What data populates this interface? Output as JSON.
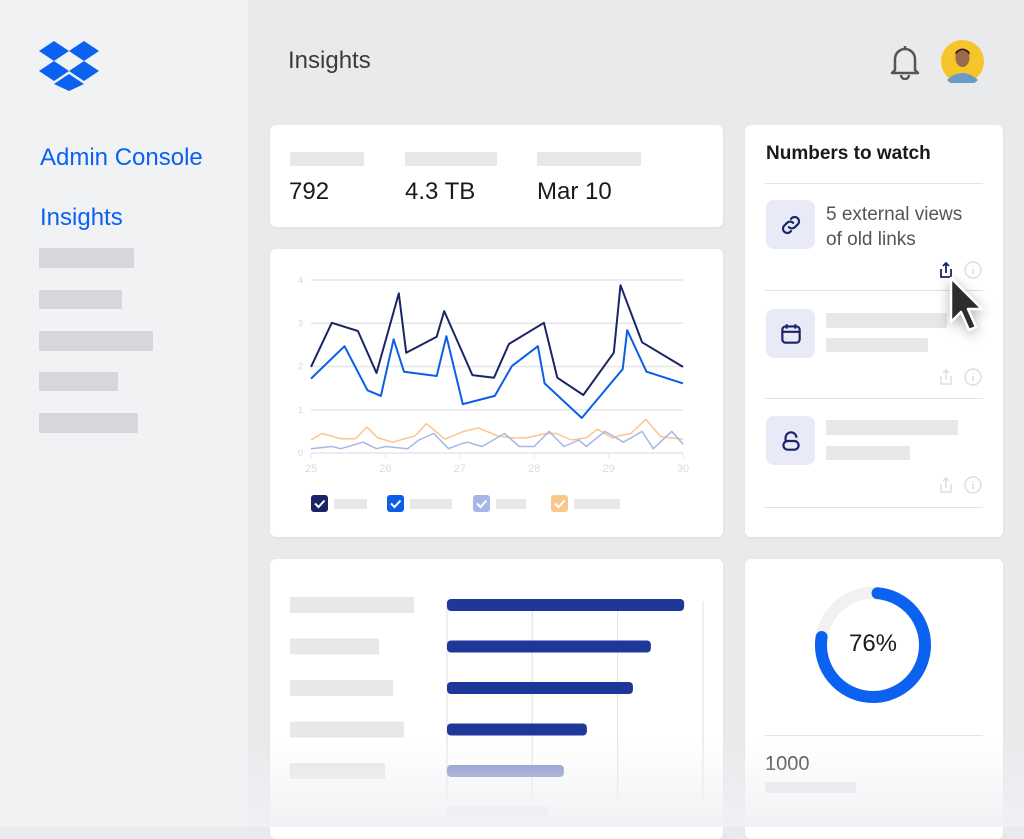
{
  "sidebar": {
    "logo": "dropbox-logo",
    "items": [
      {
        "label": "Admin Console"
      },
      {
        "label": "Insights"
      }
    ]
  },
  "header": {
    "title": "Insights",
    "icons": [
      "bell-icon",
      "avatar"
    ]
  },
  "stats": {
    "values": [
      "792",
      "4.3 TB",
      "Mar 10"
    ]
  },
  "numbers_to_watch": {
    "title": "Numbers to watch",
    "items": [
      {
        "icon": "link-icon",
        "text_line1": "5 external views",
        "text_line2": "of old links"
      },
      {
        "icon": "calendar-icon"
      },
      {
        "icon": "unlock-icon"
      }
    ]
  },
  "donut": {
    "percent": 76,
    "label": "76%",
    "color": "#0b61f0",
    "footer_value": "1000"
  },
  "colors": {
    "accent": "#0b61f0",
    "navy": "#1a2466",
    "bar": "#1e3799"
  },
  "chart_data": [
    {
      "type": "line",
      "ylim": [
        0,
        4
      ],
      "xlim": [
        25,
        30
      ],
      "yticks": [
        "0",
        "1",
        "2",
        "3",
        "4"
      ],
      "xticks": [
        "25",
        "26",
        "27",
        "28",
        "29",
        "30"
      ],
      "grid": true,
      "legend": "bottom",
      "series": [
        {
          "color": "#1a2466",
          "x": [
            25,
            25.28,
            25.63,
            25.88,
            26.18,
            26.28,
            26.69,
            26.79,
            27.17,
            27.46,
            27.66,
            28.13,
            28.31,
            28.66,
            29.07,
            29.16,
            29.45,
            30
          ],
          "y": [
            1.99,
            3.01,
            2.82,
            1.85,
            3.69,
            2.32,
            2.69,
            3.28,
            1.8,
            1.74,
            2.52,
            3.01,
            1.74,
            1.34,
            2.32,
            3.88,
            2.56,
            1.99
          ]
        },
        {
          "color": "#0a5fe6",
          "x": [
            25,
            25.45,
            25.76,
            25.94,
            26.11,
            26.25,
            26.69,
            26.82,
            27.04,
            27.47,
            27.7,
            28.05,
            28.14,
            28.64,
            29.19,
            29.25,
            29.51,
            30
          ],
          "y": [
            1.72,
            2.47,
            1.45,
            1.32,
            2.63,
            1.88,
            1.78,
            2.7,
            1.13,
            1.32,
            2.01,
            2.47,
            1.61,
            0.81,
            1.94,
            2.84,
            1.88,
            1.61
          ]
        },
        {
          "color": "#a6b6e8",
          "x": [
            25,
            25.28,
            25.4,
            25.7,
            25.88,
            26,
            26.3,
            26.45,
            26.65,
            26.85,
            27,
            27.1,
            27.3,
            27.6,
            27.8,
            28,
            28.2,
            28.4,
            28.6,
            28.7,
            28.95,
            29.2,
            29.45,
            29.6,
            29.85,
            30
          ],
          "y": [
            0.1,
            0.15,
            0.1,
            0.25,
            0.1,
            0.15,
            0.1,
            0.3,
            0.45,
            0.1,
            0.2,
            0.25,
            0.15,
            0.45,
            0.15,
            0.15,
            0.5,
            0.15,
            0.3,
            0.15,
            0.5,
            0.25,
            0.5,
            0.1,
            0.5,
            0.2
          ]
        },
        {
          "color": "#f9c68b",
          "x": [
            25,
            25.15,
            25.4,
            25.6,
            25.75,
            25.9,
            26.1,
            26.4,
            26.55,
            26.8,
            27.05,
            27.25,
            27.5,
            27.7,
            27.9,
            28.15,
            28.3,
            28.5,
            28.7,
            28.85,
            29.05,
            29.15,
            29.3,
            29.5,
            29.7,
            30
          ],
          "y": [
            0.3,
            0.45,
            0.33,
            0.33,
            0.6,
            0.35,
            0.25,
            0.4,
            0.68,
            0.32,
            0.5,
            0.58,
            0.4,
            0.35,
            0.35,
            0.45,
            0.45,
            0.3,
            0.35,
            0.55,
            0.35,
            0.4,
            0.45,
            0.78,
            0.38,
            0.32
          ]
        }
      ]
    },
    {
      "type": "bar",
      "orientation": "horizontal",
      "values": [
        2.78,
        2.39,
        2.18,
        1.64,
        1.37,
        1.18
      ],
      "xlim": [
        0,
        3
      ],
      "grid": true
    }
  ]
}
